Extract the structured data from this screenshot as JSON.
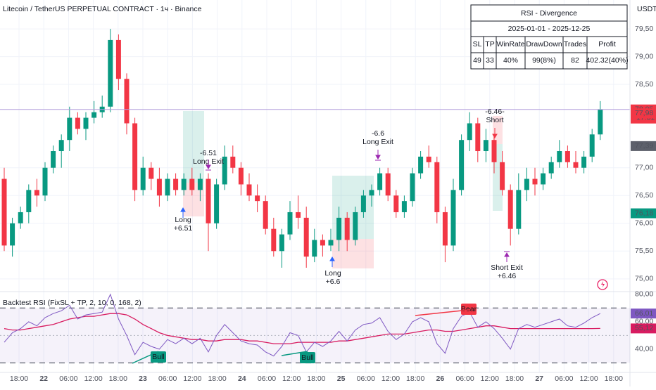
{
  "chart_data": {
    "type": "candlestick",
    "title": "Litecoin / TetherUS PERPETUAL CONTRACT · 1ч · Binance",
    "currency": "USDT",
    "up_color": "#089981",
    "down_color": "#f23645",
    "ylim": [
      74.77,
      80.02
    ],
    "yticks": [
      {
        "value": 79.5,
        "label": "79,50"
      },
      {
        "value": 79,
        "label": "79,00"
      },
      {
        "value": 78.5,
        "label": "78,50"
      },
      {
        "value": 77,
        "label": "77,00"
      },
      {
        "value": 76.5,
        "label": "76,50"
      },
      {
        "value": 76,
        "label": "76,00"
      },
      {
        "value": 75.5,
        "label": "75,50"
      },
      {
        "value": 75,
        "label": "75,00"
      }
    ],
    "grid": true,
    "xticks": [
      "18:00",
      "22",
      "06:00",
      "12:00",
      "18:00",
      "23",
      "06:00",
      "12:00",
      "18:00",
      "24",
      "06:00",
      "12:00",
      "18:00",
      "25",
      "06:00",
      "12:00",
      "18:00",
      "26",
      "06:00",
      "12:00",
      "18:00",
      "27",
      "06:00",
      "12:00",
      "18:00"
    ],
    "candles": [
      [
        76.8,
        77.0,
        75.5,
        75.6
      ],
      [
        75.6,
        76.1,
        75.4,
        76.0
      ],
      [
        76.0,
        76.3,
        75.9,
        76.2
      ],
      [
        76.2,
        76.7,
        76.0,
        76.6
      ],
      [
        76.6,
        76.8,
        76.3,
        76.5
      ],
      [
        76.5,
        77.1,
        76.4,
        77.0
      ],
      [
        77.0,
        77.4,
        76.9,
        77.3
      ],
      [
        77.3,
        77.6,
        77.0,
        77.5
      ],
      [
        77.5,
        78.1,
        77.3,
        77.9
      ],
      [
        77.9,
        78.0,
        77.6,
        77.7
      ],
      [
        77.7,
        78.0,
        77.5,
        77.9
      ],
      [
        77.9,
        78.2,
        77.8,
        78.0
      ],
      [
        78.0,
        78.3,
        77.9,
        78.1
      ],
      [
        78.1,
        79.5,
        78.0,
        79.3
      ],
      [
        79.3,
        79.4,
        78.4,
        78.6
      ],
      [
        78.6,
        78.7,
        77.6,
        77.8
      ],
      [
        77.8,
        77.9,
        76.4,
        76.6
      ],
      [
        76.6,
        77.2,
        76.5,
        77.0
      ],
      [
        77.0,
        77.1,
        76.6,
        76.8
      ],
      [
        76.8,
        77.0,
        76.3,
        76.5
      ],
      [
        76.5,
        76.9,
        76.4,
        76.8
      ],
      [
        76.8,
        76.9,
        76.5,
        76.6
      ],
      [
        76.6,
        76.9,
        76.5,
        76.8
      ],
      [
        76.8,
        77.0,
        76.5,
        76.6
      ],
      [
        76.6,
        76.9,
        76.4,
        76.8
      ],
      [
        76.8,
        76.9,
        75.5,
        76.0
      ],
      [
        76.0,
        76.8,
        75.9,
        76.7
      ],
      [
        76.7,
        77.4,
        76.6,
        77.2
      ],
      [
        77.2,
        77.4,
        76.9,
        77.0
      ],
      [
        77.0,
        77.1,
        76.5,
        76.7
      ],
      [
        76.7,
        76.9,
        76.4,
        76.5
      ],
      [
        76.5,
        76.7,
        76.2,
        76.4
      ],
      [
        76.4,
        76.5,
        75.8,
        75.9
      ],
      [
        75.9,
        76.1,
        75.4,
        75.5
      ],
      [
        75.5,
        75.9,
        75.2,
        75.8
      ],
      [
        75.8,
        76.4,
        75.7,
        76.2
      ],
      [
        76.2,
        76.5,
        75.9,
        76.1
      ],
      [
        76.1,
        76.3,
        75.2,
        75.4
      ],
      [
        75.4,
        75.9,
        75.3,
        75.7
      ],
      [
        75.7,
        75.8,
        75.4,
        75.6
      ],
      [
        75.6,
        75.9,
        75.5,
        75.7
      ],
      [
        75.7,
        76.3,
        75.5,
        76.1
      ],
      [
        76.1,
        76.2,
        75.5,
        75.7
      ],
      [
        75.7,
        76.3,
        75.6,
        76.2
      ],
      [
        76.2,
        76.6,
        76.1,
        76.5
      ],
      [
        76.5,
        76.7,
        76.3,
        76.6
      ],
      [
        76.6,
        77.0,
        76.5,
        76.9
      ],
      [
        76.9,
        77.0,
        76.4,
        76.5
      ],
      [
        76.5,
        76.6,
        76.1,
        76.2
      ],
      [
        76.2,
        76.5,
        76.1,
        76.4
      ],
      [
        76.4,
        77.0,
        76.3,
        76.9
      ],
      [
        76.9,
        77.3,
        76.8,
        77.2
      ],
      [
        77.2,
        77.4,
        77.0,
        77.1
      ],
      [
        77.1,
        77.2,
        76.0,
        76.2
      ],
      [
        76.2,
        76.3,
        75.3,
        75.6
      ],
      [
        75.6,
        76.8,
        75.5,
        76.6
      ],
      [
        76.6,
        77.6,
        76.5,
        77.5
      ],
      [
        77.5,
        78.0,
        77.3,
        77.8
      ],
      [
        77.8,
        77.9,
        77.1,
        77.3
      ],
      [
        77.3,
        77.7,
        77.1,
        77.5
      ],
      [
        77.5,
        77.6,
        76.9,
        77.1
      ],
      [
        77.1,
        77.3,
        76.5,
        76.6
      ],
      [
        76.6,
        76.7,
        75.6,
        75.9
      ],
      [
        75.9,
        76.9,
        75.8,
        76.6
      ],
      [
        76.6,
        77.0,
        76.4,
        76.8
      ],
      [
        76.8,
        77.0,
        76.5,
        76.7
      ],
      [
        76.7,
        77.0,
        76.6,
        76.9
      ],
      [
        76.9,
        77.2,
        76.8,
        77.1
      ],
      [
        77.1,
        77.5,
        77.0,
        77.3
      ],
      [
        77.3,
        77.4,
        77.0,
        77.1
      ],
      [
        77.1,
        77.3,
        76.9,
        77.0
      ],
      [
        77.0,
        77.3,
        76.9,
        77.2
      ],
      [
        77.2,
        77.7,
        77.1,
        77.6
      ],
      [
        77.6,
        78.2,
        77.5,
        78.05
      ]
    ],
    "price_badges": [
      {
        "value": 78.05,
        "label": "78,05",
        "color": "#f23645"
      },
      {
        "value": 77.98,
        "label": "77,98",
        "color": "#f23645"
      },
      {
        "value": 77.39,
        "label": "77,39",
        "color": "#5d606b"
      },
      {
        "value": 76.18,
        "label": "76,18",
        "color": "#089981"
      }
    ],
    "countdown": "17:31",
    "annotations": [
      "-6.51",
      "Long Exit",
      "Long",
      "+6.51",
      "-6.6",
      "Long Exit",
      "Long",
      "+6.6",
      "-6.46-",
      "Short",
      "Short Exit",
      "+6.46"
    ],
    "table": {
      "title": "RSI - Divergence",
      "period": "2025-01-01 - 2025-12-25",
      "headers": [
        "SL",
        "TP",
        "WinRate",
        "DrawDown",
        "Trades",
        "Profit"
      ],
      "values": [
        "49",
        "33",
        "40%",
        "99(8%)",
        "82",
        "402.32(40%)"
      ]
    },
    "rsi": {
      "title": "Backtest RSI (FixSL + TP, 2, 10, 0, 168, 2)",
      "ylim": [
        23,
        82
      ],
      "yticks": [
        {
          "value": 80,
          "label": "80,00"
        },
        {
          "value": 60,
          "label": "60,00"
        },
        {
          "value": 40,
          "label": "40,00"
        }
      ],
      "levels": [
        70,
        50,
        30
      ],
      "color": "#7e57c2",
      "ma_color": "#d81b60",
      "values": [
        45,
        52,
        55,
        60,
        57,
        63,
        66,
        68,
        72,
        62,
        65,
        66,
        67,
        80,
        62,
        50,
        36,
        45,
        42,
        40,
        47,
        44,
        48,
        44,
        48,
        38,
        50,
        58,
        52,
        46,
        44,
        43,
        38,
        35,
        42,
        52,
        50,
        38,
        45,
        42,
        46,
        53,
        46,
        54,
        58,
        59,
        63,
        53,
        47,
        51,
        60,
        63,
        60,
        44,
        37,
        55,
        64,
        67,
        56,
        60,
        55,
        48,
        40,
        55,
        58,
        56,
        58,
        60,
        62,
        57,
        56,
        59,
        63,
        66
      ],
      "ma": [
        55,
        54,
        54,
        55,
        56,
        57,
        58,
        60,
        62,
        63,
        64,
        64,
        65,
        66,
        66,
        65,
        62,
        58,
        55,
        52,
        50,
        49,
        48,
        47,
        47,
        46,
        46,
        47,
        47,
        47,
        46,
        46,
        45,
        44,
        44,
        44,
        45,
        45,
        45,
        45,
        45,
        46,
        46,
        47,
        48,
        49,
        50,
        51,
        51,
        51,
        52,
        53,
        54,
        54,
        53,
        53,
        54,
        55,
        56,
        57,
        57,
        56,
        55,
        55,
        55,
        55,
        55,
        55,
        55,
        55,
        55,
        55,
        55,
        55.12
      ],
      "badges": [
        {
          "value": 66.01,
          "label": "66,01",
          "color": "#7e57c2"
        },
        {
          "value": 55.12,
          "label": "55,12",
          "color": "#d81b60"
        }
      ],
      "signals": [
        "Bull",
        "Bull",
        "Bear"
      ]
    }
  }
}
